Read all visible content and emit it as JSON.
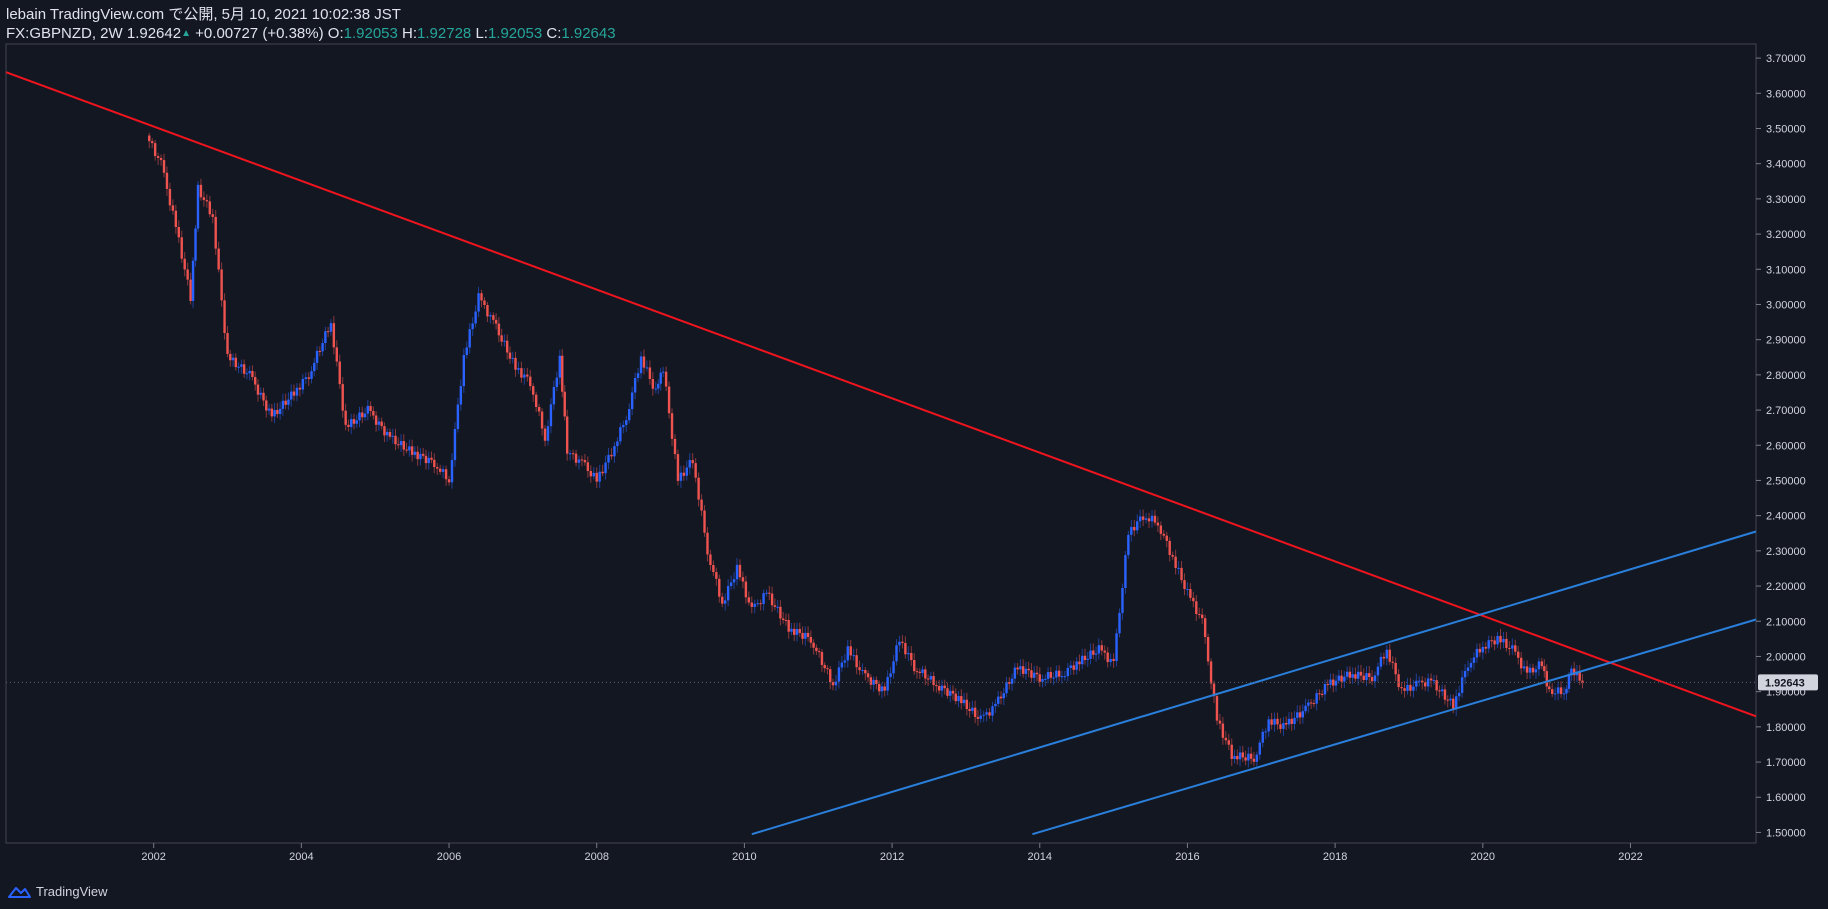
{
  "header": {
    "publish_line": "lebain TradingView.com で公開, 5月 10, 2021 10:02:38 JST",
    "symbol_line": "FX:GBPNZD, 2W",
    "last_price": "1.92642",
    "change": "+0.00727 (+0.38%)",
    "o_label": "O:",
    "o_value": "1.92053",
    "h_label": "H:",
    "h_value": "1.92728",
    "l_label": "L:",
    "l_value": "1.92053",
    "c_label": "C:",
    "c_value": "1.92643"
  },
  "footer": {
    "brand": "TradingView"
  },
  "colors": {
    "background": "#131722",
    "up_candle": "#2962ff",
    "down_candle": "#ef5350",
    "resistance_line": "#f0141e",
    "channel_line": "#2a7fdb",
    "text": "#d1d4dc",
    "price_label_bg": "#d1d4dc"
  },
  "chart_data": {
    "type": "line",
    "title": "FX:GBPNZD, 2W",
    "x_ticks": [
      "2002",
      "2004",
      "2006",
      "2008",
      "2010",
      "2012",
      "2014",
      "2016",
      "2018",
      "2020",
      "2022"
    ],
    "y_ticks": [
      "1.50000",
      "1.60000",
      "1.70000",
      "1.80000",
      "1.90000",
      "2.00000",
      "2.10000",
      "2.20000",
      "2.30000",
      "2.40000",
      "2.50000",
      "2.60000",
      "2.70000",
      "2.80000",
      "2.90000",
      "3.00000",
      "3.10000",
      "3.20000",
      "3.30000",
      "3.40000",
      "3.50000",
      "3.60000",
      "3.70000"
    ],
    "xlim": [
      2000.0,
      2023.7
    ],
    "ylim": [
      1.47,
      3.74
    ],
    "current_price_label": "1.92643",
    "current_price": 1.92643,
    "series": [
      {
        "kind": "candles",
        "x": [
          2001.9,
          2002.1,
          2002.3,
          2002.5,
          2002.6,
          2002.8,
          2003.0,
          2003.3,
          2003.6,
          2003.9,
          2004.1,
          2004.4,
          2004.6,
          2004.9,
          2005.2,
          2005.5,
          2005.8,
          2006.0,
          2006.2,
          2006.4,
          2006.6,
          2006.9,
          2007.1,
          2007.3,
          2007.5,
          2007.6,
          2007.8,
          2008.0,
          2008.2,
          2008.4,
          2008.6,
          2008.8,
          2008.9,
          2009.1,
          2009.3,
          2009.5,
          2009.7,
          2009.9,
          2010.1,
          2010.3,
          2010.6,
          2010.9,
          2011.2,
          2011.4,
          2011.6,
          2011.9,
          2012.1,
          2012.3,
          2012.6,
          2012.9,
          2013.2,
          2013.4,
          2013.7,
          2014.0,
          2014.3,
          2014.5,
          2014.8,
          2015.0,
          2015.2,
          2015.4,
          2015.6,
          2015.8,
          2016.0,
          2016.2,
          2016.4,
          2016.6,
          2016.9,
          2017.1,
          2017.3,
          2017.6,
          2017.9,
          2018.2,
          2018.5,
          2018.7,
          2018.9,
          2019.1,
          2019.3,
          2019.6,
          2019.8,
          2020.0,
          2020.2,
          2020.4,
          2020.6,
          2020.8,
          2020.9,
          2021.1,
          2021.2,
          2021.35
        ],
        "values": [
          3.48,
          3.4,
          3.22,
          3.02,
          3.33,
          3.25,
          2.85,
          2.8,
          2.68,
          2.75,
          2.8,
          2.95,
          2.65,
          2.7,
          2.62,
          2.58,
          2.55,
          2.5,
          2.85,
          3.02,
          2.95,
          2.82,
          2.78,
          2.62,
          2.85,
          2.58,
          2.55,
          2.5,
          2.58,
          2.68,
          2.85,
          2.75,
          2.82,
          2.5,
          2.56,
          2.3,
          2.15,
          2.25,
          2.13,
          2.18,
          2.08,
          2.05,
          1.92,
          2.02,
          1.95,
          1.9,
          2.05,
          1.97,
          1.92,
          1.88,
          1.82,
          1.86,
          1.97,
          1.94,
          1.95,
          1.98,
          2.02,
          1.98,
          2.35,
          2.4,
          2.38,
          2.28,
          2.18,
          2.1,
          1.82,
          1.72,
          1.71,
          1.82,
          1.8,
          1.85,
          1.92,
          1.95,
          1.94,
          2.02,
          1.9,
          1.92,
          1.93,
          1.86,
          1.98,
          2.03,
          2.05,
          2.02,
          1.95,
          1.98,
          1.9,
          1.9,
          1.96,
          1.93
        ]
      }
    ],
    "trendlines": [
      {
        "name": "",
        "from": [
          2000.0,
          3.66
        ],
        "to": [
          2023.7,
          1.83
        ]
      },
      {
        "name": "",
        "from": [
          2010.1,
          1.495
        ],
        "to": [
          2023.7,
          2.355
        ]
      },
      {
        "name": "",
        "from": [
          2013.9,
          1.495
        ],
        "to": [
          2023.7,
          2.105
        ]
      }
    ],
    "grid": false,
    "legend": "none"
  }
}
